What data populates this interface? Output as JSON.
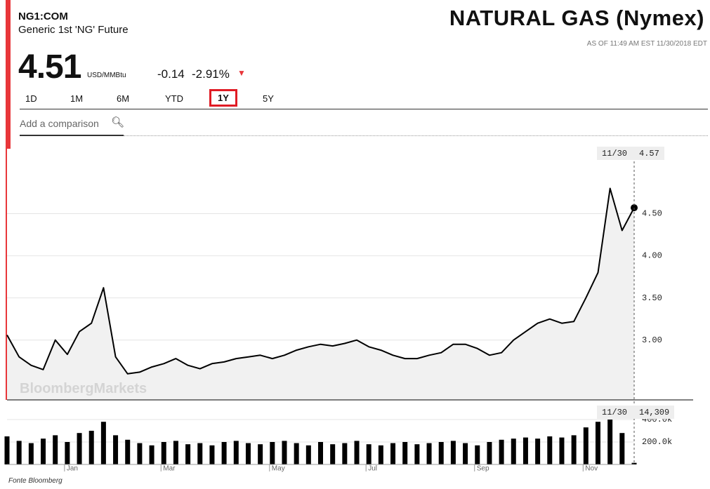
{
  "header": {
    "ticker": "NG1:COM",
    "name": "Generic 1st 'NG' Future",
    "title": "NATURAL GAS (Nymex)",
    "as_of": "AS OF 11:49 AM EST 11/30/2018 EDT"
  },
  "quote": {
    "price": "4.51",
    "unit": "USD/MMBtu",
    "change": "-0.14",
    "change_pct": "-2.91%"
  },
  "tabs": [
    {
      "label": "1D"
    },
    {
      "label": "1M"
    },
    {
      "label": "6M"
    },
    {
      "label": "YTD"
    },
    {
      "label": "1Y",
      "selected": true
    },
    {
      "label": "5Y"
    }
  ],
  "comparison_placeholder": "Add a comparison",
  "watermark": "BloombergMarkets",
  "source": "Fonte Bloomberg",
  "chart_data": [
    {
      "type": "line",
      "crosshair_date": "11/30",
      "categories": [
        null,
        null,
        null,
        null,
        null,
        "Jan",
        null,
        null,
        null,
        null,
        null,
        null,
        null,
        "Mar",
        null,
        null,
        null,
        null,
        null,
        null,
        null,
        null,
        "May",
        null,
        null,
        null,
        null,
        null,
        null,
        null,
        "Jul",
        null,
        null,
        null,
        null,
        null,
        null,
        null,
        null,
        "Sep",
        null,
        null,
        null,
        null,
        null,
        null,
        null,
        null,
        "Nov",
        null,
        null,
        null,
        null
      ],
      "series": [
        {
          "color": "#000000",
          "values": [
            3.06,
            2.8,
            2.7,
            2.65,
            3.0,
            2.83,
            3.1,
            3.2,
            3.62,
            2.8,
            2.6,
            2.62,
            2.68,
            2.72,
            2.78,
            2.7,
            2.66,
            2.72,
            2.74,
            2.78,
            2.8,
            2.82,
            2.78,
            2.82,
            2.88,
            2.92,
            2.95,
            2.93,
            2.96,
            3.0,
            2.92,
            2.88,
            2.82,
            2.78,
            2.78,
            2.82,
            2.85,
            2.95,
            2.95,
            2.9,
            2.82,
            2.85,
            3.0,
            3.1,
            3.2,
            3.25,
            3.2,
            3.22,
            3.5,
            3.8,
            4.8,
            4.3,
            4.57
          ]
        }
      ],
      "ylim": [
        2.29,
        5.27
      ],
      "yticks": [
        {
          "value": 3,
          "label": "3.00"
        },
        {
          "value": 3.5,
          "label": "3.50"
        },
        {
          "value": 4,
          "label": "4.00"
        },
        {
          "value": 4.5,
          "label": "4.50"
        }
      ],
      "grid": true
    },
    {
      "type": "bar",
      "crosshair_date": "11/30",
      "series": [
        {
          "color": "#000000",
          "values": [
            250000,
            210000,
            190000,
            230000,
            260000,
            200000,
            280000,
            300000,
            380000,
            260000,
            220000,
            190000,
            170000,
            200000,
            210000,
            180000,
            190000,
            170000,
            200000,
            210000,
            190000,
            180000,
            200000,
            210000,
            190000,
            170000,
            200000,
            180000,
            190000,
            210000,
            180000,
            170000,
            190000,
            200000,
            180000,
            190000,
            200000,
            210000,
            190000,
            170000,
            200000,
            220000,
            230000,
            240000,
            230000,
            250000,
            240000,
            260000,
            330000,
            380000,
            400000,
            280000,
            14309
          ],
          "value_labels": [
            null,
            null,
            null,
            null,
            null,
            null,
            null,
            null,
            null,
            null,
            null,
            null,
            null,
            null,
            null,
            null,
            null,
            null,
            null,
            null,
            null,
            null,
            null,
            null,
            null,
            null,
            null,
            null,
            null,
            null,
            null,
            null,
            null,
            null,
            null,
            null,
            null,
            null,
            null,
            null,
            null,
            null,
            null,
            null,
            null,
            null,
            null,
            null,
            null,
            null,
            null,
            null,
            "14,309"
          ]
        }
      ],
      "ylim": [
        0,
        525000
      ],
      "yticks": [
        {
          "value": 200000,
          "label": "200.0k"
        },
        {
          "value": 400000,
          "label": "400.0k"
        }
      ],
      "grid": true
    }
  ]
}
